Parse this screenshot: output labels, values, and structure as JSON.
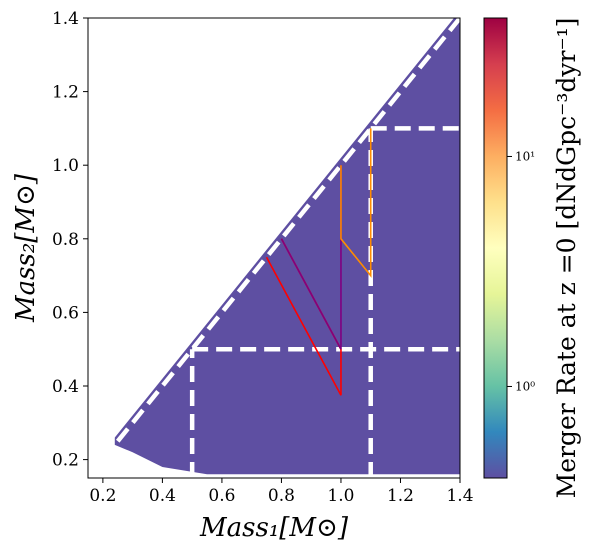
{
  "chart_data": {
    "type": "heatmap",
    "xlabel": "Mass₁[M⊙]",
    "ylabel": "Mass₂[M⊙]",
    "xlim": [
      0.15,
      1.4
    ],
    "ylim": [
      0.15,
      1.4
    ],
    "x_ticks": [
      0.2,
      0.4,
      0.6,
      0.8,
      1.0,
      1.2,
      1.4
    ],
    "x_tick_labels": [
      "0.2",
      "0.4",
      "0.6",
      "0.8",
      "1.0",
      "1.2",
      "1.4"
    ],
    "y_ticks": [
      0.2,
      0.4,
      0.6,
      0.8,
      1.0,
      1.2,
      1.4
    ],
    "y_tick_labels": [
      "0.2",
      "0.4",
      "0.6",
      "0.8",
      "1.0",
      "1.2",
      "1.4"
    ],
    "grid": false,
    "hexbin": {
      "color": "#5e4fa2",
      "region": "m2 <= m1 (lower-right triangle)",
      "polygon": [
        [
          0.24,
          0.24
        ],
        [
          0.24,
          0.26
        ],
        [
          1.38,
          1.4
        ],
        [
          1.4,
          1.4
        ],
        [
          1.4,
          0.16
        ],
        [
          0.55,
          0.16
        ],
        [
          0.4,
          0.18
        ],
        [
          0.3,
          0.22
        ]
      ]
    },
    "dashed_lines": [
      {
        "color": "#ffffff",
        "points": [
          [
            0.25,
            0.25
          ],
          [
            1.4,
            1.4
          ]
        ]
      },
      {
        "color": "#ffffff",
        "points": [
          [
            0.5,
            0.5
          ],
          [
            1.4,
            0.5
          ]
        ]
      },
      {
        "color": "#ffffff",
        "points": [
          [
            0.5,
            0.15
          ],
          [
            0.5,
            0.5
          ]
        ]
      },
      {
        "color": "#ffffff",
        "points": [
          [
            1.1,
            0.15
          ],
          [
            1.1,
            1.1
          ]
        ]
      },
      {
        "color": "#ffffff",
        "points": [
          [
            1.1,
            1.1
          ],
          [
            1.4,
            1.1
          ]
        ]
      }
    ],
    "region_outlines": [
      {
        "color": "#ff0000",
        "points": [
          [
            0.75,
            0.75
          ],
          [
            1.0,
            0.375
          ],
          [
            1.0,
            0.5
          ],
          [
            0.8,
            0.8
          ]
        ]
      },
      {
        "color": "#e31a1c",
        "points": [
          [
            0.8,
            0.8
          ],
          [
            1.0,
            0.5
          ]
        ]
      },
      {
        "color": "#800080",
        "points": [
          [
            0.8,
            0.8
          ],
          [
            1.0,
            0.5
          ],
          [
            1.0,
            1.0
          ]
        ]
      },
      {
        "color": "#ff8c00",
        "points": [
          [
            1.0,
            1.0
          ],
          [
            1.0,
            0.8
          ],
          [
            1.1,
            0.7
          ],
          [
            1.1,
            1.1
          ]
        ]
      }
    ],
    "colorbar": {
      "label": "Merger Rate at z =0 [dNdGpc⁻³dyr⁻¹]",
      "scale": "log",
      "range": [
        0.4,
        40
      ],
      "ticks": [
        1,
        10
      ],
      "tick_labels": [
        "10⁰",
        "10¹"
      ],
      "colormap": "Spectral_r",
      "colors": [
        "#5e4fa2",
        "#3288bd",
        "#66c2a5",
        "#abdda4",
        "#e6f598",
        "#ffffbf",
        "#fee08b",
        "#fdae61",
        "#f46d43",
        "#d53e4f",
        "#9e0142"
      ]
    }
  }
}
